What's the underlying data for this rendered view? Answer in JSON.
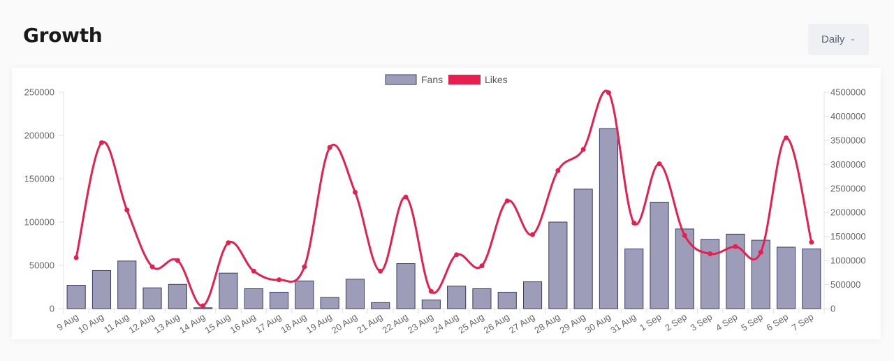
{
  "header": {
    "title": "Growth",
    "period_selector": {
      "value": "Daily",
      "icon": "chevron-down-icon"
    }
  },
  "chart_data": {
    "type": "bar",
    "title": "",
    "categories": [
      "9 Aug",
      "10 Aug",
      "11 Aug",
      "12 Aug",
      "13 Aug",
      "14 Aug",
      "15 Aug",
      "16 Aug",
      "17 Aug",
      "18 Aug",
      "19 Aug",
      "20 Aug",
      "21 Aug",
      "22 Aug",
      "23 Aug",
      "24 Aug",
      "25 Aug",
      "26 Aug",
      "27 Aug",
      "28 Aug",
      "29 Aug",
      "30 Aug",
      "31 Aug",
      "1 Sep",
      "2 Sep",
      "3 Sep",
      "4 Sep",
      "5 Sep",
      "6 Sep",
      "7 Sep"
    ],
    "series": [
      {
        "name": "Fans",
        "kind": "bar",
        "axis": "left",
        "color": "#9d9db9",
        "stroke": "#3b3b6b",
        "values": [
          27000,
          44000,
          55000,
          24000,
          28000,
          1000,
          41000,
          23000,
          19000,
          32000,
          13000,
          34000,
          7000,
          52000,
          10000,
          26000,
          23000,
          19000,
          31000,
          100000,
          138000,
          208000,
          69000,
          123000,
          92000,
          80000,
          86000,
          79000,
          71000,
          69000
        ]
      },
      {
        "name": "Likes",
        "kind": "line",
        "axis": "right",
        "color": "#e91e4e",
        "values": [
          1060000,
          3450000,
          2050000,
          870000,
          1000000,
          60000,
          1370000,
          780000,
          600000,
          870000,
          3350000,
          2420000,
          780000,
          2320000,
          360000,
          1120000,
          890000,
          2240000,
          1540000,
          2870000,
          3310000,
          4490000,
          1780000,
          3010000,
          1520000,
          1140000,
          1290000,
          1170000,
          3550000,
          1380000
        ]
      }
    ],
    "y_left": {
      "min": 0,
      "max": 250000,
      "ticks": [
        "250000",
        "200000",
        "150000",
        "100000",
        "50000",
        "0"
      ]
    },
    "y_right": {
      "min": 0,
      "max": 4500000,
      "ticks": [
        "4500000",
        "4000000",
        "3500000",
        "3000000",
        "2500000",
        "2000000",
        "1500000",
        "1000000",
        "500000",
        "0"
      ]
    },
    "legend": "top-center",
    "grid": false
  }
}
